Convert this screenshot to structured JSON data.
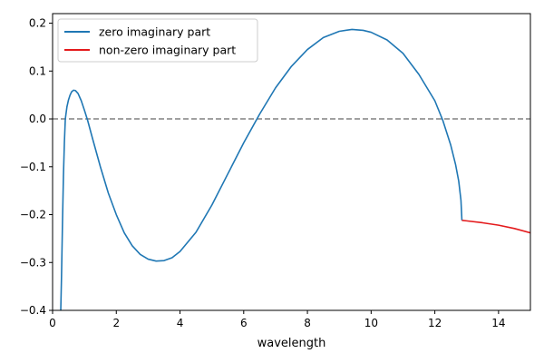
{
  "chart_data": {
    "type": "line",
    "title": "",
    "xlabel": "wavelength",
    "ylabel": "",
    "xlim": [
      0,
      15
    ],
    "ylim": [
      -0.4,
      0.22
    ],
    "xticks": [
      0,
      2,
      4,
      6,
      8,
      10,
      12,
      14
    ],
    "yticks": [
      -0.4,
      -0.3,
      -0.2,
      -0.1,
      0.0,
      0.1,
      0.2
    ],
    "ytick_labels": [
      "−0.4",
      "−0.3",
      "−0.2",
      "−0.1",
      "0.0",
      "0.1",
      "0.2"
    ],
    "grid": false,
    "legend": "top-left",
    "reference_line": {
      "y": 0.0,
      "style": "dashed",
      "color": "#808080"
    },
    "series": [
      {
        "name": "zero imaginary part",
        "color": "#1f77b4",
        "points": [
          [
            0.25,
            -0.42
          ],
          [
            0.28,
            -0.33
          ],
          [
            0.31,
            -0.22
          ],
          [
            0.34,
            -0.12
          ],
          [
            0.37,
            -0.05
          ],
          [
            0.4,
            0.0
          ],
          [
            0.45,
            0.025
          ],
          [
            0.5,
            0.04
          ],
          [
            0.55,
            0.05
          ],
          [
            0.6,
            0.057
          ],
          [
            0.66,
            0.06
          ],
          [
            0.72,
            0.059
          ],
          [
            0.8,
            0.053
          ],
          [
            0.9,
            0.038
          ],
          [
            1.0,
            0.018
          ],
          [
            1.1,
            -0.003
          ],
          [
            1.25,
            -0.04
          ],
          [
            1.5,
            -0.1
          ],
          [
            1.75,
            -0.155
          ],
          [
            2.0,
            -0.2
          ],
          [
            2.25,
            -0.238
          ],
          [
            2.5,
            -0.265
          ],
          [
            2.75,
            -0.283
          ],
          [
            3.0,
            -0.293
          ],
          [
            3.25,
            -0.297
          ],
          [
            3.5,
            -0.296
          ],
          [
            3.75,
            -0.29
          ],
          [
            4.0,
            -0.277
          ],
          [
            4.5,
            -0.237
          ],
          [
            5.0,
            -0.18
          ],
          [
            5.5,
            -0.115
          ],
          [
            6.0,
            -0.05
          ],
          [
            6.5,
            0.01
          ],
          [
            7.0,
            0.065
          ],
          [
            7.5,
            0.11
          ],
          [
            8.0,
            0.145
          ],
          [
            8.5,
            0.17
          ],
          [
            9.0,
            0.183
          ],
          [
            9.4,
            0.187
          ],
          [
            9.75,
            0.185
          ],
          [
            10.0,
            0.181
          ],
          [
            10.5,
            0.165
          ],
          [
            11.0,
            0.137
          ],
          [
            11.5,
            0.093
          ],
          [
            12.0,
            0.038
          ],
          [
            12.25,
            -0.003
          ],
          [
            12.5,
            -0.055
          ],
          [
            12.65,
            -0.095
          ],
          [
            12.75,
            -0.13
          ],
          [
            12.82,
            -0.17
          ],
          [
            12.85,
            -0.212
          ]
        ]
      },
      {
        "name": "non-zero imaginary part",
        "color": "#e41a1c",
        "points": [
          [
            12.85,
            -0.212
          ],
          [
            13.0,
            -0.213
          ],
          [
            13.5,
            -0.217
          ],
          [
            14.0,
            -0.222
          ],
          [
            14.5,
            -0.229
          ],
          [
            15.0,
            -0.238
          ]
        ]
      }
    ]
  }
}
